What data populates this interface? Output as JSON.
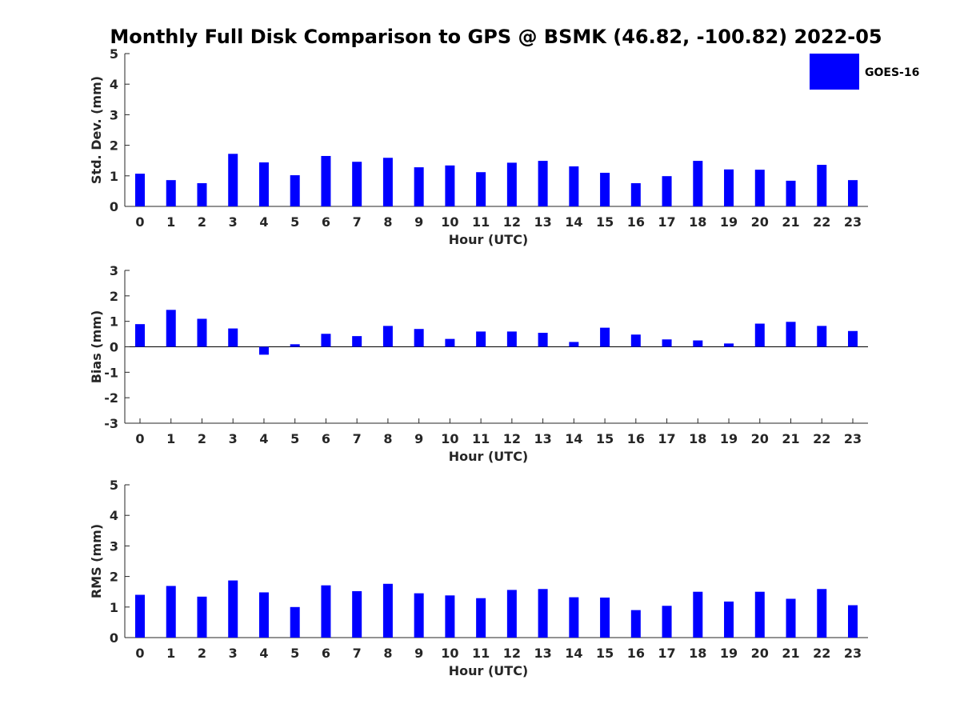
{
  "title": "Monthly Full Disk Comparison to GPS @ BSMK (46.82, -100.82) 2022-05",
  "legend": {
    "label": "GOES-16",
    "color": "#0000ff",
    "placement": "top-right"
  },
  "bar_color": "#0000ff",
  "chart_data": [
    {
      "type": "bar",
      "title": "Monthly Full Disk Comparison to GPS @ BSMK (46.82, -100.82) 2022-05",
      "xlabel": "Hour (UTC)",
      "ylabel": "Std. Dev. (mm)",
      "ylim": [
        0,
        5
      ],
      "yticks": [
        0,
        1,
        2,
        3,
        4,
        5
      ],
      "categories": [
        "0",
        "1",
        "2",
        "3",
        "4",
        "5",
        "6",
        "7",
        "8",
        "9",
        "10",
        "11",
        "12",
        "13",
        "14",
        "15",
        "16",
        "17",
        "18",
        "19",
        "20",
        "21",
        "22",
        "23"
      ],
      "series": [
        {
          "name": "GOES-16",
          "values": [
            1.07,
            0.86,
            0.76,
            1.72,
            1.44,
            1.02,
            1.65,
            1.46,
            1.59,
            1.28,
            1.34,
            1.12,
            1.43,
            1.49,
            1.31,
            1.1,
            0.76,
            0.99,
            1.49,
            1.21,
            1.2,
            0.84,
            1.36,
            0.86
          ]
        }
      ],
      "grid": false
    },
    {
      "type": "bar",
      "xlabel": "Hour (UTC)",
      "ylabel": "Bias (mm)",
      "ylim": [
        -3,
        3
      ],
      "yticks": [
        -3,
        -2,
        -1,
        0,
        1,
        2,
        3
      ],
      "categories": [
        "0",
        "1",
        "2",
        "3",
        "4",
        "5",
        "6",
        "7",
        "8",
        "9",
        "10",
        "11",
        "12",
        "13",
        "14",
        "15",
        "16",
        "17",
        "18",
        "19",
        "20",
        "21",
        "22",
        "23"
      ],
      "series": [
        {
          "name": "GOES-16",
          "values": [
            0.89,
            1.45,
            1.1,
            0.72,
            -0.31,
            0.1,
            0.51,
            0.42,
            0.82,
            0.7,
            0.31,
            0.6,
            0.6,
            0.55,
            0.19,
            0.75,
            0.48,
            0.29,
            0.25,
            0.13,
            0.91,
            0.98,
            0.82,
            0.62
          ]
        }
      ],
      "grid": false
    },
    {
      "type": "bar",
      "xlabel": "Hour (UTC)",
      "ylabel": "RMS (mm)",
      "ylim": [
        0,
        5
      ],
      "yticks": [
        0,
        1,
        2,
        3,
        4,
        5
      ],
      "categories": [
        "0",
        "1",
        "2",
        "3",
        "4",
        "5",
        "6",
        "7",
        "8",
        "9",
        "10",
        "11",
        "12",
        "13",
        "14",
        "15",
        "16",
        "17",
        "18",
        "19",
        "20",
        "21",
        "22",
        "23"
      ],
      "series": [
        {
          "name": "GOES-16",
          "values": [
            1.4,
            1.69,
            1.34,
            1.87,
            1.48,
            1.0,
            1.71,
            1.52,
            1.76,
            1.45,
            1.38,
            1.29,
            1.56,
            1.59,
            1.32,
            1.31,
            0.9,
            1.04,
            1.5,
            1.18,
            1.5,
            1.27,
            1.59,
            1.06
          ]
        }
      ],
      "grid": false
    }
  ]
}
